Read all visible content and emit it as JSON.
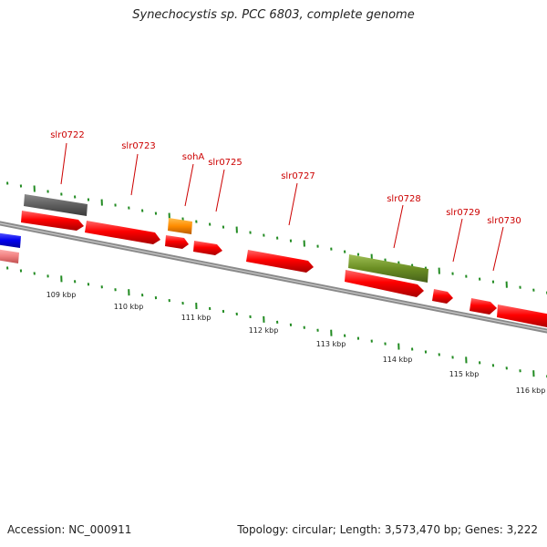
{
  "title": "Synechocystis sp. PCC 6803, complete genome",
  "footer": {
    "accession": "Accession: NC_000911",
    "stats": "Topology: circular; Length: 3,573,470 bp; Genes: 3,222"
  },
  "colors": {
    "gene_forward": "#ff0000",
    "gene_label": "#cc0000",
    "backbone": "#888888",
    "tick": "#228b22",
    "tick_label": "#222222"
  },
  "gene_labels": [
    "slr0722",
    "slr0723",
    "sohA",
    "slr0725",
    "slr0727",
    "slr0728",
    "slr0729",
    "slr0730"
  ],
  "scale_labels": [
    "109 kbp",
    "110 kbp",
    "111 kbp",
    "112 kbp",
    "113 kbp",
    "114 kbp",
    "115 kbp",
    "116 kbp"
  ]
}
